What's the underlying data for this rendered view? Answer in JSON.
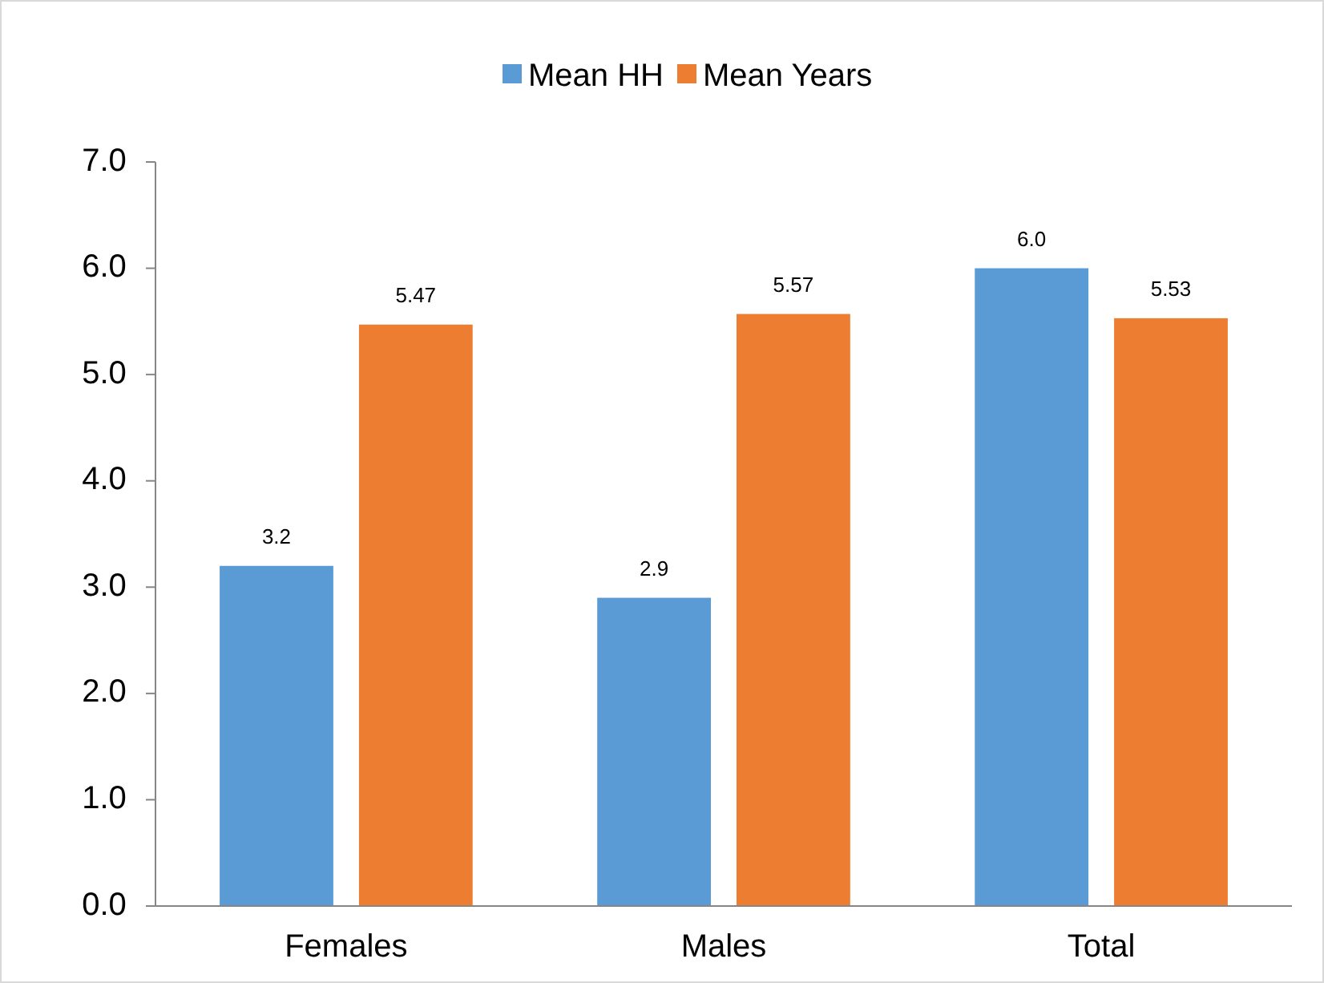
{
  "chart_data": {
    "type": "bar",
    "categories": [
      "Females",
      "Males",
      "Total"
    ],
    "series": [
      {
        "name": "Mean HH",
        "color": "#5b9bd5",
        "values": [
          3.2,
          2.9,
          6.0
        ],
        "value_labels": [
          "3.2",
          "2.9",
          "6.0"
        ]
      },
      {
        "name": "Mean Years",
        "color": "#ed7d31",
        "values": [
          5.47,
          5.57,
          5.53
        ],
        "value_labels": [
          "5.47",
          "5.57",
          "5.53"
        ]
      }
    ],
    "ylim": [
      0,
      7
    ],
    "yticks": [
      {
        "value": 0,
        "label": "0.0"
      },
      {
        "value": 1,
        "label": "1.0"
      },
      {
        "value": 2,
        "label": "2.0"
      },
      {
        "value": 3,
        "label": "3.0"
      },
      {
        "value": 4,
        "label": "4.0"
      },
      {
        "value": 5,
        "label": "5.0"
      },
      {
        "value": 6,
        "label": "6.0"
      },
      {
        "value": 7,
        "label": "7.0"
      }
    ],
    "grid": false,
    "legend": "top"
  }
}
